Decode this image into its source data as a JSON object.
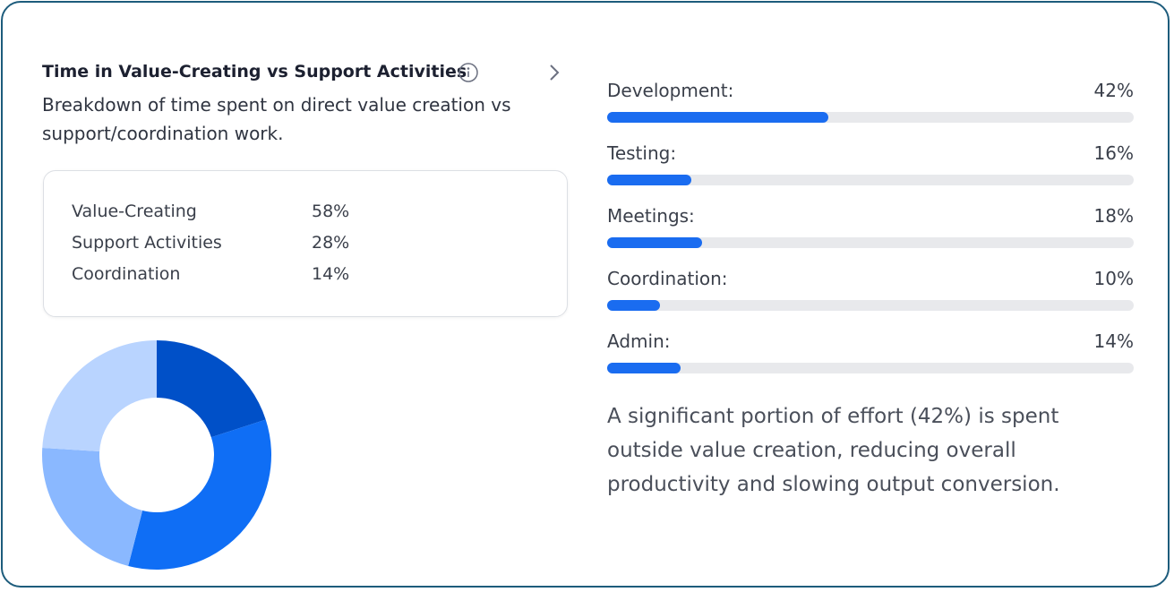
{
  "header": {
    "title": "Time in Value-Creating vs Support Activities",
    "subtitle": "Breakdown of time spent on direct value creation vs support/coordination work."
  },
  "summary": {
    "rows": [
      [
        "Value-Creating",
        "58%"
      ],
      [
        "Support Activities",
        "28%"
      ],
      [
        "Coordination",
        "14%"
      ]
    ]
  },
  "chart_data": [
    {
      "type": "pie",
      "donut": true,
      "values": [
        20,
        34,
        22,
        24
      ],
      "colors": [
        "#0050c8",
        "#0f6ef5",
        "#8ab8ff",
        "#b9d4ff"
      ]
    },
    {
      "type": "bar",
      "orientation": "horizontal",
      "categories": [
        "Development:",
        "Testing:",
        "Meetings:",
        "Coordination:",
        "Admin:"
      ],
      "values": [
        42,
        16,
        18,
        10,
        14
      ],
      "value_labels": [
        "42%",
        "16%",
        "18%",
        "10%",
        "14%"
      ],
      "color": "#1a6cf0",
      "track_color": "#e8e9ec"
    }
  ],
  "insight": "A significant portion of effort (42%) is spent outside value creation, reducing overall productivity and slowing output conversion."
}
